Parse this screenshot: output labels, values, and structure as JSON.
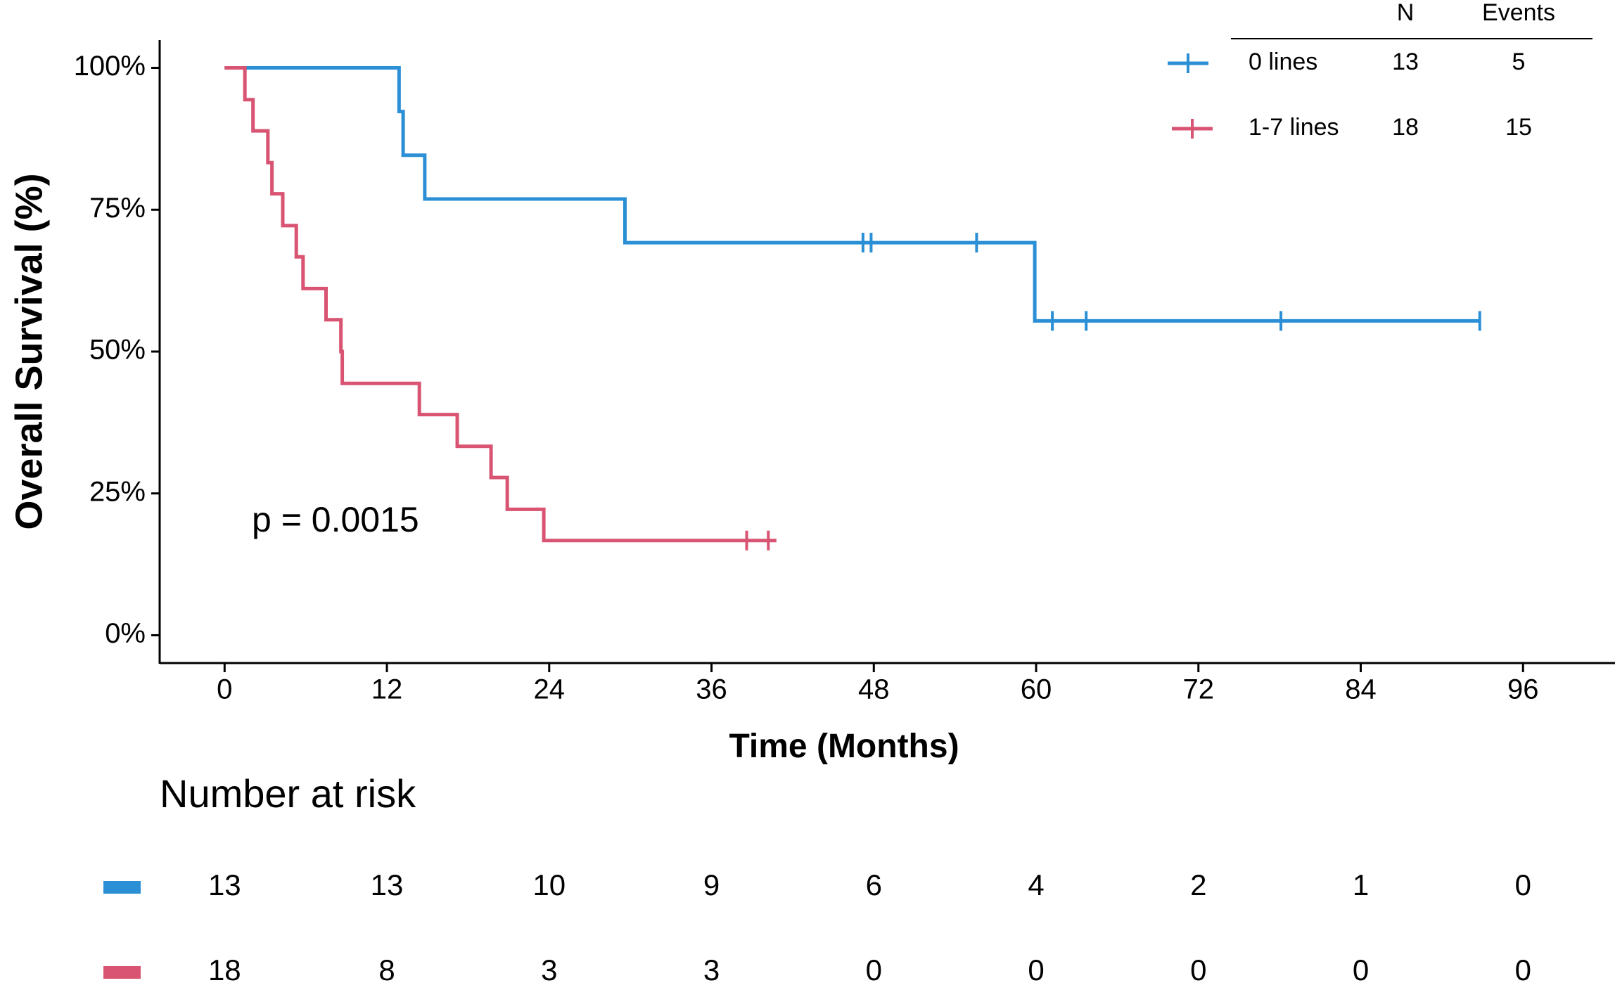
{
  "chart_data": {
    "type": "line",
    "subtype": "kaplan-meier",
    "title": "",
    "xlabel": "Time (Months)",
    "ylabel": "Overall Survival (%)",
    "xlim": [
      -4.8,
      102.8
    ],
    "ylim": [
      -4.9,
      104.9
    ],
    "x_ticks": [
      "0",
      "12",
      "24",
      "36",
      "48",
      "60",
      "72",
      "84",
      "96"
    ],
    "x_tick_values": [
      0,
      12,
      24,
      36,
      48,
      60,
      72,
      84,
      96
    ],
    "y_ticks": [
      "0%",
      "25%",
      "50%",
      "75%",
      "100%"
    ],
    "y_tick_values": [
      0,
      25,
      50,
      75,
      100
    ],
    "grid": false,
    "pvalue_label": "p = 0.0015",
    "legend": {
      "position": "top-right",
      "header_n": "N",
      "header_events": "Events",
      "entries": [
        {
          "label": "0 lines",
          "n": "13",
          "events": "5"
        },
        {
          "label": "1-7 lines",
          "n": "18",
          "events": "15"
        }
      ]
    },
    "series": [
      {
        "name": "0 lines",
        "color": "#2b8fd6",
        "steps": [
          [
            0,
            100
          ],
          [
            12.9,
            92.3
          ],
          [
            13.2,
            84.6
          ],
          [
            14.8,
            76.9
          ],
          [
            29.6,
            69.2
          ],
          [
            59.9,
            55.4
          ],
          [
            92.8,
            55.4
          ]
        ],
        "censored": [
          [
            47.2,
            69.2
          ],
          [
            47.8,
            69.2
          ],
          [
            55.6,
            69.2
          ],
          [
            61.2,
            55.4
          ],
          [
            63.7,
            55.4
          ],
          [
            78.1,
            55.4
          ],
          [
            92.8,
            55.4
          ]
        ]
      },
      {
        "name": "1-7 lines",
        "color": "#d85472",
        "steps": [
          [
            0,
            100
          ],
          [
            1.5,
            94.4
          ],
          [
            2.1,
            88.9
          ],
          [
            3.2,
            83.3
          ],
          [
            3.5,
            77.8
          ],
          [
            4.3,
            72.2
          ],
          [
            5.3,
            66.7
          ],
          [
            5.8,
            61.1
          ],
          [
            7.5,
            55.6
          ],
          [
            8.6,
            50.0
          ],
          [
            8.7,
            44.4
          ],
          [
            14.4,
            38.9
          ],
          [
            17.2,
            33.3
          ],
          [
            19.7,
            27.8
          ],
          [
            20.9,
            22.2
          ],
          [
            23.6,
            16.7
          ],
          [
            40.8,
            16.7
          ]
        ],
        "censored": [
          [
            38.6,
            16.7
          ],
          [
            40.2,
            16.7
          ]
        ]
      }
    ],
    "risk_table": {
      "title": "Number at risk",
      "times": [
        0,
        12,
        24,
        36,
        48,
        60,
        72,
        84,
        96
      ],
      "rows": [
        {
          "name": "0 lines",
          "color": "#2b8fd6",
          "values": [
            "13",
            "13",
            "10",
            "9",
            "6",
            "4",
            "2",
            "1",
            "0"
          ]
        },
        {
          "name": "1-7 lines",
          "color": "#d85472",
          "values": [
            "18",
            "8",
            "3",
            "3",
            "0",
            "0",
            "0",
            "0",
            "0"
          ]
        }
      ]
    }
  }
}
